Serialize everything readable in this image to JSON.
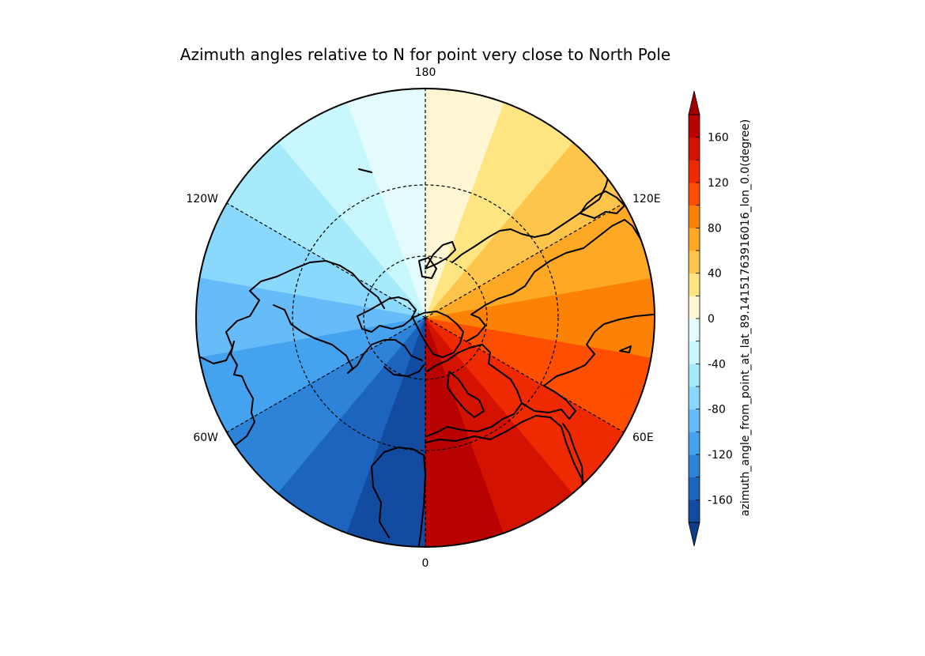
{
  "chart_data": {
    "type": "heatmap",
    "projection": "north-polar-stereographic",
    "title": "Azimuth angles relative to N for point very close to North Pole",
    "colorbar": {
      "label": "azimuth_angle_from_point_at_lat_89.14151763916016_lon_0.0(degree)",
      "tick_labels": [
        "160",
        "120",
        "80",
        "40",
        "0",
        "-40",
        "-80",
        "-120",
        "-160"
      ],
      "tick_values": [
        160,
        120,
        80,
        40,
        0,
        -40,
        -80,
        -120,
        -160
      ],
      "levels": [
        -180,
        -160,
        -140,
        -120,
        -100,
        -80,
        -60,
        -40,
        -20,
        0,
        20,
        40,
        60,
        80,
        100,
        120,
        140,
        160,
        180
      ],
      "extend": "both",
      "orientation": "vertical",
      "placement": "right",
      "colors": [
        "#134ba0",
        "#1c64be",
        "#2d83d8",
        "#45a2ee",
        "#65bcf9",
        "#8bd8fd",
        "#a6eafc",
        "#c8f7fd",
        "#e4fbfd",
        "#fff6d4",
        "#ffe582",
        "#fec54c",
        "#fda925",
        "#fc8205",
        "#fe4f00",
        "#ef2a03",
        "#d41200",
        "#b70200"
      ],
      "under_color": "#0e3d8a",
      "over_color": "#a00000"
    },
    "meridian_labels": [
      {
        "lon": 180,
        "text": "180"
      },
      {
        "lon": -120,
        "text": "120W"
      },
      {
        "lon": 120,
        "text": "120E"
      },
      {
        "lon": -60,
        "text": "60W"
      },
      {
        "lon": 60,
        "text": "60E"
      },
      {
        "lon": 0,
        "text": "0"
      }
    ],
    "meridians_drawn_deg": [
      0,
      60,
      120,
      180,
      -60,
      -120
    ],
    "parallels_drawn_deg": [
      80,
      60,
      40
    ],
    "boundary_latitude_deg": 20,
    "sectors": [
      {
        "lon_from": -180,
        "lon_to": -160,
        "value": -10
      },
      {
        "lon_from": -160,
        "lon_to": -140,
        "value": -30
      },
      {
        "lon_from": -140,
        "lon_to": -120,
        "value": -50
      },
      {
        "lon_from": -120,
        "lon_to": -100,
        "value": -70
      },
      {
        "lon_from": -100,
        "lon_to": -80,
        "value": -90
      },
      {
        "lon_from": -80,
        "lon_to": -60,
        "value": -110
      },
      {
        "lon_from": -60,
        "lon_to": -40,
        "value": -130
      },
      {
        "lon_from": -40,
        "lon_to": -20,
        "value": -150
      },
      {
        "lon_from": -20,
        "lon_to": 0,
        "value": -170
      },
      {
        "lon_from": 0,
        "lon_to": 20,
        "value": 170
      },
      {
        "lon_from": 20,
        "lon_to": 40,
        "value": 150
      },
      {
        "lon_from": 40,
        "lon_to": 60,
        "value": 130
      },
      {
        "lon_from": 60,
        "lon_to": 80,
        "value": 110
      },
      {
        "lon_from": 80,
        "lon_to": 100,
        "value": 90
      },
      {
        "lon_from": 100,
        "lon_to": 120,
        "value": 70
      },
      {
        "lon_from": 120,
        "lon_to": 140,
        "value": 50
      },
      {
        "lon_from": 140,
        "lon_to": 160,
        "value": 30
      },
      {
        "lon_from": 160,
        "lon_to": 180,
        "value": 10
      }
    ]
  }
}
